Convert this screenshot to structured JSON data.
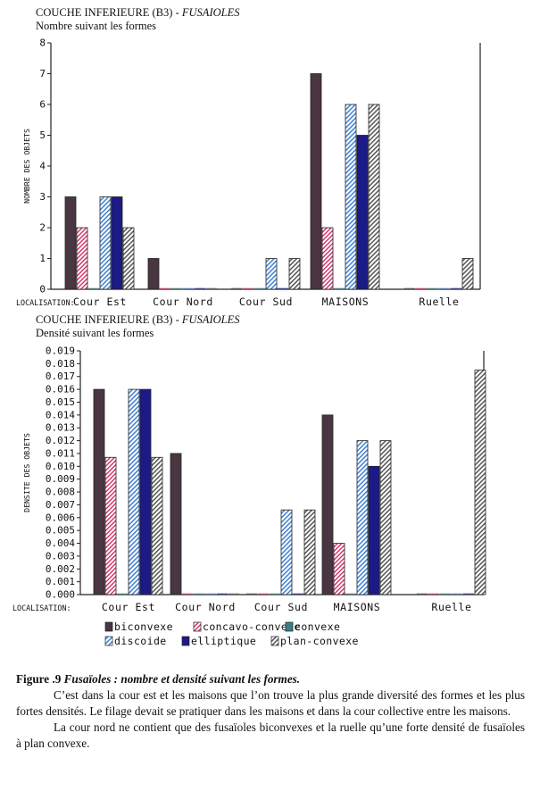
{
  "colors": {
    "biconvexe": "#4a3542",
    "concavo-convexe": "#d2306c",
    "convexe": "#3a7f86",
    "discoide": "#3f7fd2",
    "elliptique": "#1c1a86",
    "plan-convexe": "#555555"
  },
  "figure": {
    "label": "Figure .9",
    "title": "Fusaïoles : nombre et densité suivant les formes.",
    "paragraph1": "C’est dans la cour est et les maisons que l’on trouve la plus grande diversité des formes et les plus fortes densités. Le filage devait se pratiquer dans les maisons et dans la cour collective entre les maisons.",
    "paragraph2": "La cour nord ne contient que des fusaïoles biconvexes et la ruelle qu’une forte densité de fusaïoles à plan convexe."
  },
  "chart_data": [
    {
      "type": "bar",
      "title": "COUCHE INFERIEURE (B3) - ",
      "title_italic": "FUSAIOLES",
      "subtitle": "Nombre suivant les formes",
      "ylabel": "NOMBRE DES OBJETS",
      "xlabel": "LOCALISATION:",
      "ylim": [
        0,
        8
      ],
      "yticks": [
        "0",
        "1",
        "2",
        "3",
        "4",
        "5",
        "6",
        "7",
        "8"
      ],
      "categories": [
        "Cour Est",
        "Cour Nord",
        "Cour Sud",
        "MAISONS",
        "Ruelle"
      ],
      "series": [
        {
          "key": "biconvexe",
          "values": [
            3,
            1,
            0,
            7,
            0
          ]
        },
        {
          "key": "concavo-convexe",
          "values": [
            2,
            0,
            0,
            2,
            0
          ]
        },
        {
          "key": "convexe",
          "values": [
            0,
            0,
            0,
            0,
            0
          ]
        },
        {
          "key": "discoide",
          "values": [
            3,
            0,
            1,
            6,
            0
          ]
        },
        {
          "key": "elliptique",
          "values": [
            3,
            0,
            0,
            5,
            0
          ]
        },
        {
          "key": "plan-convexe",
          "values": [
            2,
            0,
            1,
            6,
            1
          ]
        }
      ]
    },
    {
      "type": "bar",
      "title": "COUCHE INFERIEURE (B3) - ",
      "title_italic": "FUSAIOLES",
      "subtitle": "Densité suivant les formes",
      "ylabel": "DENSITE DES OBJETS",
      "xlabel": "LOCALISATION:",
      "ylim": [
        0,
        0.019
      ],
      "yticks": [
        "0.000",
        "0.001",
        "0.002",
        "0.003",
        "0.004",
        "0.005",
        "0.006",
        "0.007",
        "0.008",
        "0.009",
        "0.010",
        "0.011",
        "0.012",
        "0.013",
        "0.014",
        "0.015",
        "0.016",
        "0.017",
        "0.018",
        "0.019"
      ],
      "categories": [
        "Cour Est",
        "Cour Nord",
        "Cour Sud",
        "MAISONS",
        "Ruelle"
      ],
      "series": [
        {
          "key": "biconvexe",
          "values": [
            0.016,
            0.011,
            0,
            0.014,
            0
          ]
        },
        {
          "key": "concavo-convexe",
          "values": [
            0.0107,
            0,
            0,
            0.004,
            0
          ]
        },
        {
          "key": "convexe",
          "values": [
            0,
            0,
            0,
            0,
            0
          ]
        },
        {
          "key": "discoide",
          "values": [
            0.016,
            0,
            0.0066,
            0.012,
            0
          ]
        },
        {
          "key": "elliptique",
          "values": [
            0.016,
            0,
            0,
            0.01,
            0
          ]
        },
        {
          "key": "plan-convexe",
          "values": [
            0.0107,
            0,
            0.0066,
            0.012,
            0.0175
          ]
        }
      ],
      "legend": [
        {
          "key": "biconvexe",
          "label": "biconvexe"
        },
        {
          "key": "concavo-convexe",
          "label": "concavo-convexe"
        },
        {
          "key": "convexe",
          "label": "convexe"
        },
        {
          "key": "discoide",
          "label": "discoide"
        },
        {
          "key": "elliptique",
          "label": "elliptique"
        },
        {
          "key": "plan-convexe",
          "label": "plan-convexe"
        }
      ]
    }
  ]
}
